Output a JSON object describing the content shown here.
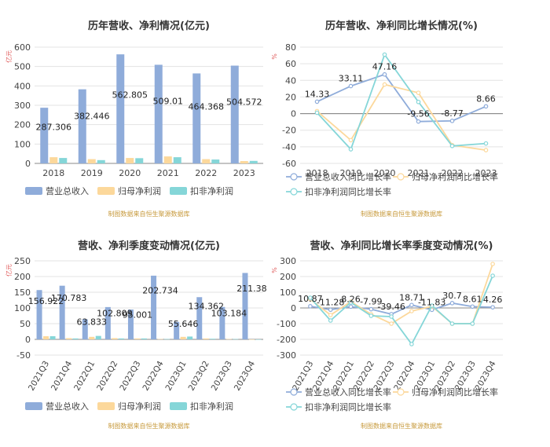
{
  "colors": {
    "revenue": "#8facda",
    "netprofit": "#fcd89b",
    "deducted": "#85d6d8",
    "grid": "#e3e3e3",
    "axis": "#666666",
    "unit": "#e05c5c",
    "source": "#c79a3c"
  },
  "source_text": "制图数据来自恒生聚源数据库",
  "chart_data": [
    {
      "type": "bar",
      "title": "历年营收、净利情况(亿元)",
      "unit_label": "亿元",
      "categories": [
        "2018",
        "2019",
        "2020",
        "2021",
        "2022",
        "2023"
      ],
      "ylim": [
        0,
        600
      ],
      "yticks": [
        0,
        100,
        200,
        300,
        400,
        500,
        600
      ],
      "grid": true,
      "legend_position": "bottom",
      "series": [
        {
          "name": "营业总收入",
          "values": [
            287.306,
            382.446,
            562.805,
            509.01,
            464.368,
            504.572
          ],
          "labels": [
            "287.306",
            "382.446",
            "562.805",
            "509.01",
            "464.368",
            "504.572"
          ]
        },
        {
          "name": "归母净利润",
          "values": [
            32,
            22,
            28,
            36,
            22,
            12
          ]
        },
        {
          "name": "扣非净利润",
          "values": [
            28,
            17,
            27,
            32,
            20,
            13
          ]
        }
      ]
    },
    {
      "type": "line",
      "title": "历年营收、净利同比增长情况(%)",
      "unit_label": "%",
      "categories": [
        "2018",
        "2019",
        "2020",
        "2021",
        "2022",
        "2023"
      ],
      "ylim": [
        -60,
        80
      ],
      "yticks": [
        -60,
        -40,
        -20,
        0,
        20,
        40,
        60,
        80
      ],
      "grid": true,
      "legend_position": "bottom",
      "series": [
        {
          "name": "营业总收入同比增长率",
          "values": [
            14.33,
            33.11,
            47.16,
            -9.56,
            -8.77,
            8.66
          ],
          "labels": [
            "14.33",
            "33.11",
            "47.16",
            "-9.56",
            "-8.77",
            "8.66"
          ]
        },
        {
          "name": "归母净利润同比增长率",
          "values": [
            3,
            -32,
            35,
            25,
            -38,
            -44
          ]
        },
        {
          "name": "扣非净利润同比增长率",
          "values": [
            1,
            -43,
            71,
            14,
            -39,
            -36
          ]
        }
      ]
    },
    {
      "type": "bar",
      "title": "营收、净利季度变动情况(亿元)",
      "unit_label": "亿元",
      "categories": [
        "2021Q3",
        "2021Q4",
        "2022Q1",
        "2022Q2",
        "2022Q3",
        "2022Q4",
        "2023Q1",
        "2023Q2",
        "2023Q3",
        "2023Q4"
      ],
      "ylim": [
        -50,
        250
      ],
      "yticks": [
        -50,
        0,
        50,
        100,
        150,
        200,
        250
      ],
      "grid": true,
      "legend_position": "bottom",
      "series": [
        {
          "name": "营业总收入",
          "values": [
            156.922,
            170.783,
            63.833,
            102.809,
            95.001,
            202.734,
            55.646,
            134.362,
            103.184,
            211.38
          ],
          "labels": [
            "156.922",
            "170.783",
            "63.833",
            "102.809",
            "95.001",
            "202.734",
            "55.646",
            "134.362",
            "103.184",
            "211.38"
          ]
        },
        {
          "name": "归母净利润",
          "values": [
            10,
            4,
            8,
            4,
            3,
            1,
            8,
            3,
            1,
            0
          ]
        },
        {
          "name": "扣非净利润",
          "values": [
            10,
            3,
            11,
            3,
            3,
            1,
            9,
            2,
            1,
            0
          ]
        }
      ]
    },
    {
      "type": "line",
      "title": "营收、净利同比增长率季度变动情况(%)",
      "unit_label": "%",
      "categories": [
        "2021Q3",
        "2021Q4",
        "2022Q1",
        "2022Q2",
        "2022Q3",
        "2022Q4",
        "2023Q1",
        "2023Q2",
        "2023Q3",
        "2023Q4"
      ],
      "ylim": [
        -300,
        300
      ],
      "yticks": [
        -300,
        -200,
        -100,
        0,
        100,
        200,
        300
      ],
      "grid": true,
      "legend_position": "bottom",
      "series": [
        {
          "name": "营业总收入同比增长率",
          "values": [
            10.87,
            -11.28,
            8.26,
            -7.99,
            -39.46,
            18.71,
            -11.83,
            30.7,
            8.61,
            4.26
          ],
          "labels": [
            "10.87",
            "-11.28",
            "8.26",
            "-7.99",
            "-39.46",
            "18.71",
            "-11.83",
            "30.7",
            "8.61",
            "4.26"
          ]
        },
        {
          "name": "归母净利润同比增长率",
          "values": [
            55,
            -45,
            40,
            -40,
            -100,
            -20,
            10,
            -100,
            -100,
            280
          ]
        },
        {
          "name": "扣非净利润同比增长率",
          "values": [
            65,
            -80,
            35,
            -50,
            -55,
            -230,
            15,
            -100,
            -100,
            205
          ]
        }
      ]
    }
  ]
}
